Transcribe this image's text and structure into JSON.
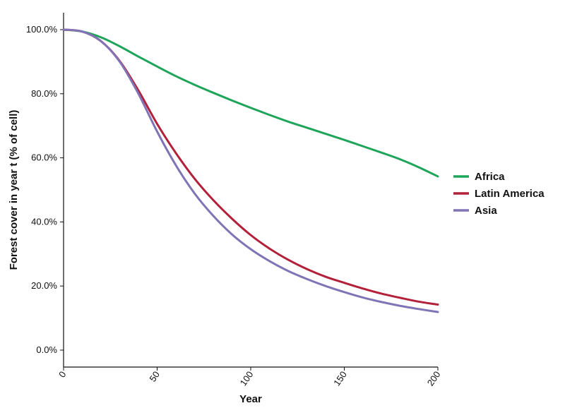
{
  "chart_data": {
    "type": "line",
    "xlabel": "Year",
    "ylabel": "Forest cover in year t (% of cell)",
    "xlim": [
      0,
      200
    ],
    "ylim": [
      0,
      100
    ],
    "x_ticks": [
      0,
      50,
      100,
      150,
      200
    ],
    "x_tick_labels": [
      "0",
      "50",
      "100",
      "150",
      "200"
    ],
    "y_ticks": [
      0,
      20,
      40,
      60,
      80,
      100
    ],
    "y_tick_labels": [
      "0.0%",
      "20.0%",
      "40.0%",
      "60.0%",
      "80.0%",
      "100.0%"
    ],
    "grid": false,
    "legend_position": "right",
    "x": [
      0,
      10,
      20,
      30,
      40,
      50,
      60,
      70,
      80,
      90,
      100,
      110,
      120,
      130,
      140,
      150,
      160,
      170,
      180,
      190,
      200
    ],
    "series": [
      {
        "name": "Africa",
        "color": "#1fa55a",
        "values": [
          100.0,
          99.4,
          97.6,
          94.8,
          91.6,
          88.5,
          85.5,
          82.8,
          80.3,
          77.9,
          75.6,
          73.4,
          71.3,
          69.4,
          67.5,
          65.6,
          63.6,
          61.6,
          59.5,
          57.0,
          54.2
        ]
      },
      {
        "name": "Latin America",
        "color": "#b2203a",
        "values": [
          100.0,
          99.4,
          96.4,
          90.2,
          81.0,
          70.6,
          61.5,
          53.5,
          46.8,
          41.0,
          35.9,
          31.7,
          28.2,
          25.3,
          22.9,
          21.0,
          19.2,
          17.6,
          16.3,
          15.1,
          14.2
        ]
      },
      {
        "name": "Asia",
        "color": "#8074b6",
        "values": [
          100.0,
          99.4,
          96.4,
          90.0,
          80.0,
          68.2,
          57.7,
          48.9,
          41.9,
          36.1,
          31.5,
          27.8,
          24.7,
          22.2,
          20.0,
          18.1,
          16.4,
          15.0,
          13.8,
          12.8,
          11.9
        ]
      }
    ]
  }
}
